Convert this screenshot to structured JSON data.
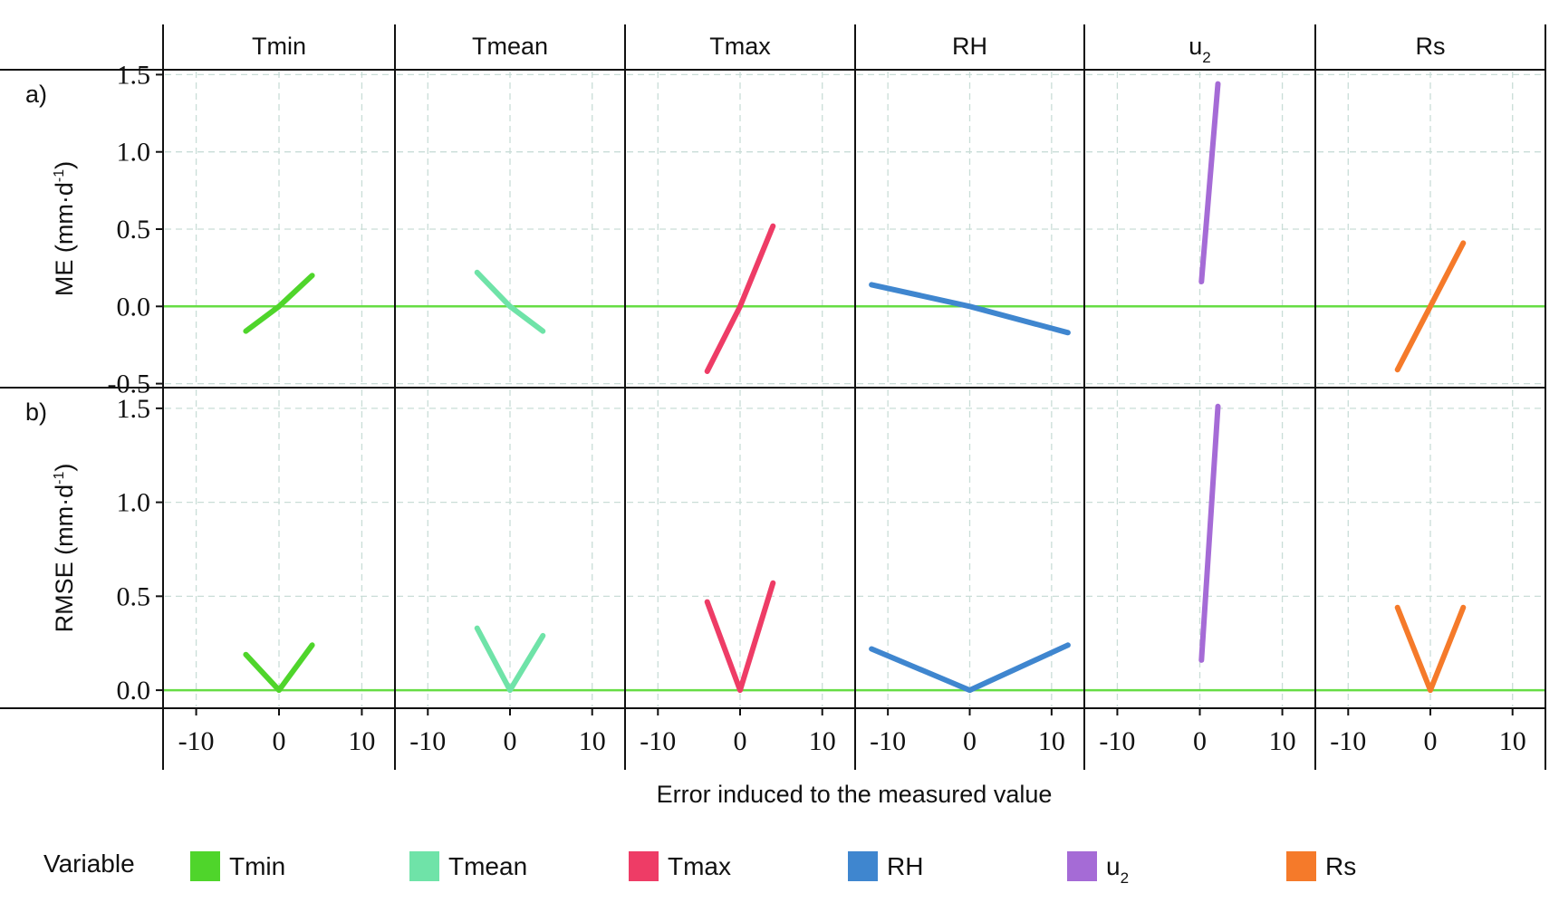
{
  "chart_data": {
    "type": "line",
    "facets": [
      {
        "name": "Tmin",
        "sub": "",
        "color": "#4fd52b"
      },
      {
        "name": "Tmean",
        "sub": "",
        "color": "#6fe3a8"
      },
      {
        "name": "Tmax",
        "sub": "",
        "color": "#ee3c66"
      },
      {
        "name": "RH",
        "sub": "",
        "color": "#3f86cf"
      },
      {
        "name": "u",
        "sub": "2",
        "color": "#a56bd6"
      },
      {
        "name": "Rs",
        "sub": "",
        "color": "#f57a2a"
      }
    ],
    "rows": [
      {
        "label": "a)",
        "ylabel_main": "ME (mm·d",
        "ylabel_sup": "-1",
        "ylabel_end": ")",
        "ylim": [
          -0.55,
          1.58
        ],
        "yticks": [
          -0.5,
          0.0,
          0.5,
          1.0,
          1.5
        ],
        "ytick_labels": [
          "-0.5",
          "0.0",
          "0.5",
          "1.0",
          "1.5"
        ],
        "series": [
          {
            "facet": "Tmin",
            "x": [
              -4,
              0,
              4
            ],
            "y": [
              -0.16,
              0.0,
              0.2
            ]
          },
          {
            "facet": "Tmean",
            "x": [
              -4,
              0,
              4
            ],
            "y": [
              0.22,
              0.0,
              -0.16
            ]
          },
          {
            "facet": "Tmax",
            "x": [
              -4,
              0,
              4
            ],
            "y": [
              -0.42,
              0.0,
              0.52
            ]
          },
          {
            "facet": "RH",
            "x": [
              -12,
              0,
              12
            ],
            "y": [
              0.14,
              0.0,
              -0.17
            ]
          },
          {
            "facet": "u",
            "x": [
              0.2,
              2.2
            ],
            "y": [
              0.16,
              1.44
            ]
          },
          {
            "facet": "Rs",
            "x": [
              -4,
              0,
              4
            ],
            "y": [
              -0.41,
              0.0,
              0.41
            ]
          }
        ]
      },
      {
        "label": "b)",
        "ylabel_main": "RMSE (mm·d",
        "ylabel_sup": "-1",
        "ylabel_end": ")",
        "ylim": [
          -0.06,
          1.58
        ],
        "yticks": [
          0.0,
          0.5,
          1.0,
          1.5
        ],
        "ytick_labels": [
          "0.0",
          "0.5",
          "1.0",
          "1.5"
        ],
        "series": [
          {
            "facet": "Tmin",
            "x": [
              -4,
              0,
              4
            ],
            "y": [
              0.19,
              0.0,
              0.24
            ]
          },
          {
            "facet": "Tmean",
            "x": [
              -4,
              0,
              4
            ],
            "y": [
              0.33,
              0.0,
              0.29
            ]
          },
          {
            "facet": "Tmax",
            "x": [
              -4,
              0,
              4
            ],
            "y": [
              0.47,
              0.0,
              0.57
            ]
          },
          {
            "facet": "RH",
            "x": [
              -12,
              0,
              12
            ],
            "y": [
              0.22,
              0.0,
              0.24
            ]
          },
          {
            "facet": "u",
            "x": [
              0.2,
              2.2
            ],
            "y": [
              0.16,
              1.51
            ]
          },
          {
            "facet": "Rs",
            "x": [
              -4,
              0,
              4
            ],
            "y": [
              0.44,
              0.0,
              0.44
            ]
          }
        ]
      }
    ],
    "xlim": [
      -14,
      14
    ],
    "xticks": [
      -10,
      0,
      10
    ],
    "xtick_labels": [
      "-10",
      "0",
      "10"
    ],
    "xlabel": "Error induced to the measured value",
    "legend": {
      "title": "Variable",
      "placement": "bottom",
      "items": [
        {
          "label": "Tmin",
          "sub": "",
          "color": "#4fd52b"
        },
        {
          "label": "Tmean",
          "sub": "",
          "color": "#6fe3a8"
        },
        {
          "label": "Tmax",
          "sub": "",
          "color": "#ee3c66"
        },
        {
          "label": "RH",
          "sub": "",
          "color": "#3f86cf"
        },
        {
          "label": "u",
          "sub": "2",
          "color": "#a56bd6"
        },
        {
          "label": "Rs",
          "sub": "",
          "color": "#f57a2a"
        }
      ]
    },
    "reference_line": {
      "y": 0,
      "color": "#66dd44"
    },
    "grid": true
  }
}
